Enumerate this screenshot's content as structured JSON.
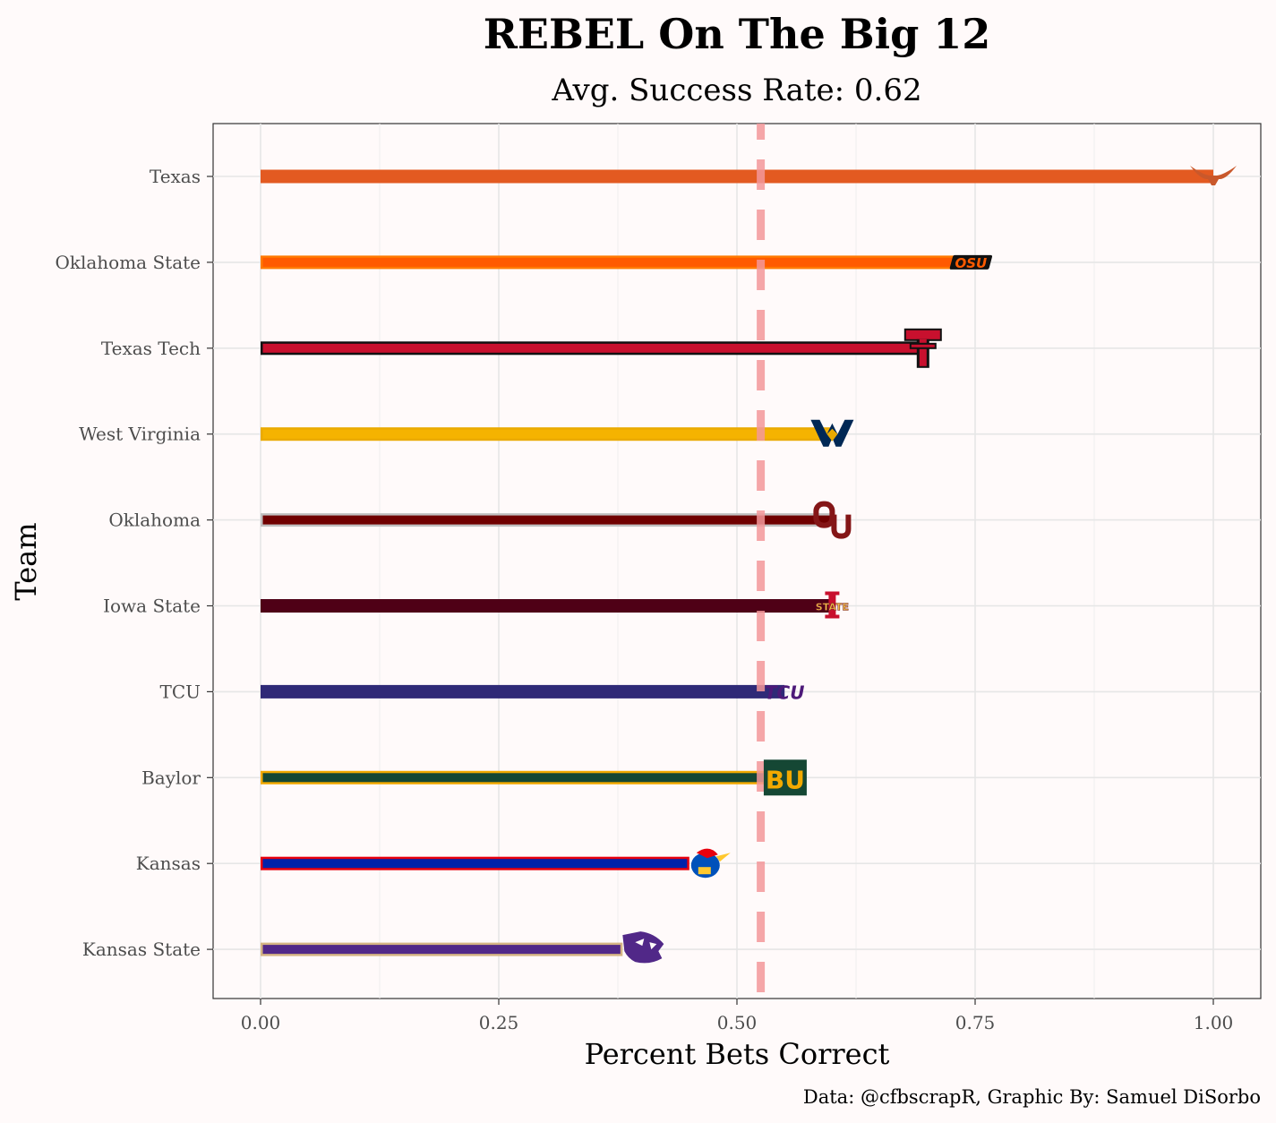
{
  "chart_data": {
    "type": "bar",
    "orientation": "horizontal",
    "title": "REBEL On The Big 12",
    "subtitle": "Avg. Success Rate: 0.62",
    "xlabel": "Percent Bets Correct",
    "ylabel": "Team",
    "caption": "Data: @cfbscrapR, Graphic By: Samuel DiSorbo",
    "xlim": [
      -0.048,
      1.05
    ],
    "x_ticks": [
      "0.00",
      "0.25",
      "0.50",
      "0.75",
      "1.00"
    ],
    "x_tick_values": [
      0,
      0.25,
      0.5,
      0.75,
      1.0
    ],
    "reference_line": 0.525,
    "grid": true,
    "categories": [
      "Texas",
      "Oklahoma State",
      "Texas Tech",
      "West Virginia",
      "Oklahoma",
      "Iowa State",
      "TCU",
      "Baylor",
      "Kansas",
      "Kansas State"
    ],
    "values": [
      1.0,
      0.74,
      0.7,
      0.6,
      0.6,
      0.6,
      0.55,
      0.53,
      0.45,
      0.38
    ],
    "colors": [
      {
        "fill": "#e35a21",
        "outline": "#e35a21"
      },
      {
        "fill": "#ff5a00",
        "outline": "#ff7a00"
      },
      {
        "fill": "#c8102e",
        "outline": "#111111"
      },
      {
        "fill": "#f5b300",
        "outline": "#eaaa00"
      },
      {
        "fill": "#700000",
        "outline": "#c0c0c0"
      },
      {
        "fill": "#4f0016",
        "outline": "#4f0016"
      },
      {
        "fill": "#2f2a77",
        "outline": "#2f2a77"
      },
      {
        "fill": "#154734",
        "outline": "#f2a900"
      },
      {
        "fill": "#0022aa",
        "outline": "#e8000d"
      },
      {
        "fill": "#512888",
        "outline": "#d4b483"
      }
    ],
    "logos": [
      "longhorn-icon",
      "osu-logo-icon",
      "texas-tech-logo-icon",
      "west-virginia-logo-icon",
      "oklahoma-logo-icon",
      "iowa-state-logo-icon",
      "tcu-logo-icon",
      "baylor-logo-icon",
      "kansas-jayhawk-icon",
      "kansas-state-wildcat-icon"
    ]
  }
}
